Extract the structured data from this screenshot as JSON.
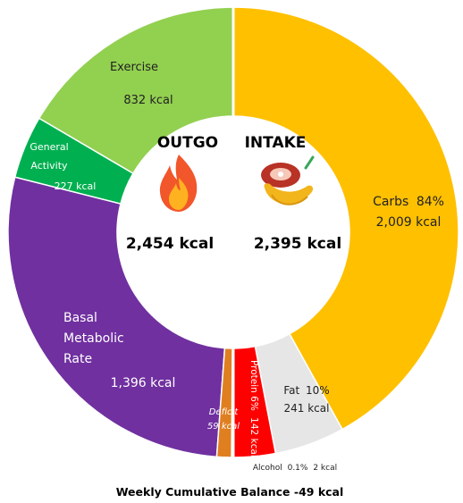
{
  "chart_data": {
    "type": "pie",
    "variant": "split-donut",
    "caption": "Weekly Cumulative Balance -49 kcal",
    "outgo": {
      "heading": "OUTGO",
      "total_label": "2,454 kcal",
      "total": 2454,
      "icon": "fire-icon",
      "segments": [
        {
          "name": "Exercise",
          "value_label": "832 kcal",
          "value": 832,
          "color": "#92d050"
        },
        {
          "name": "General Activity",
          "label_lines": [
            "General",
            "Activity"
          ],
          "value_label": "227 kcal",
          "value": 227,
          "color": "#00b050"
        },
        {
          "name": "Basal Metabolic Rate",
          "label_lines": [
            "Basal",
            "Metabolic",
            "Rate"
          ],
          "value_label": "1,396 kcal",
          "value": 1396,
          "color": "#7030a0"
        },
        {
          "name": "Deficit",
          "value_label": "59 kcal",
          "value": 59,
          "color": "#e07f20"
        }
      ]
    },
    "intake": {
      "heading": "INTAKE",
      "total_label": "2,395 kcal",
      "total": 2395,
      "icon": "food-icon",
      "segments": [
        {
          "name": "Carbs",
          "percent_label": "84%",
          "value_label": "2,009 kcal",
          "value": 2009,
          "color": "#ffc000"
        },
        {
          "name": "Fat",
          "percent_label": "10%",
          "value_label": "241 kcal",
          "value": 241,
          "color": "#e6e6e6"
        },
        {
          "name": "Protein",
          "percent_label": "6%",
          "value_label": "142 kcal",
          "value": 142,
          "color": "#ff0000"
        },
        {
          "name": "Alcohol",
          "percent_label": "0.1%",
          "value_label": "2 kcal",
          "value": 2,
          "color": "#7f3f00"
        }
      ]
    }
  }
}
